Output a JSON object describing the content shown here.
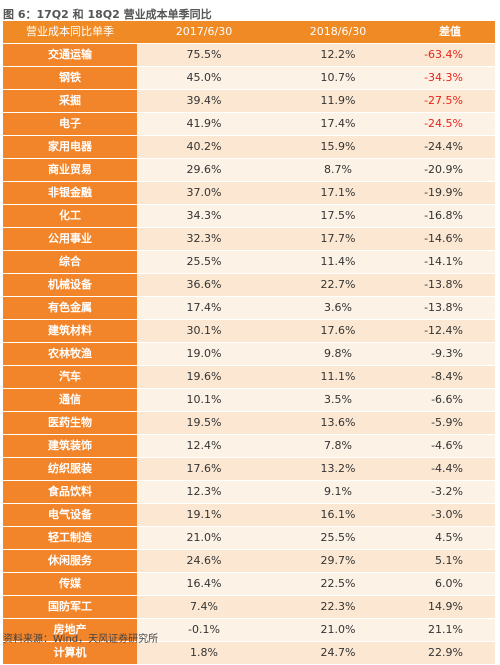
{
  "figure": {
    "title": "图 6：17Q2 和 18Q2 营业成本单季同比",
    "source": "资料来源：Wind，天风证券研究所"
  },
  "table": {
    "headers": [
      "营业成本同比单季",
      "2017/6/30",
      "2018/6/30",
      "差值"
    ],
    "rows": [
      {
        "industry": "交通运输",
        "v2017": "75.5%",
        "v2018": "12.2%",
        "diff": "-63.4%",
        "highlight": true
      },
      {
        "industry": "钢铁",
        "v2017": "45.0%",
        "v2018": "10.7%",
        "diff": "-34.3%",
        "highlight": true
      },
      {
        "industry": "采掘",
        "v2017": "39.4%",
        "v2018": "11.9%",
        "diff": "-27.5%",
        "highlight": true
      },
      {
        "industry": "电子",
        "v2017": "41.9%",
        "v2018": "17.4%",
        "diff": "-24.5%",
        "highlight": true
      },
      {
        "industry": "家用电器",
        "v2017": "40.2%",
        "v2018": "15.9%",
        "diff": "-24.4%",
        "highlight": false
      },
      {
        "industry": "商业贸易",
        "v2017": "29.6%",
        "v2018": "8.7%",
        "diff": "-20.9%",
        "highlight": false
      },
      {
        "industry": "非银金融",
        "v2017": "37.0%",
        "v2018": "17.1%",
        "diff": "-19.9%",
        "highlight": false
      },
      {
        "industry": "化工",
        "v2017": "34.3%",
        "v2018": "17.5%",
        "diff": "-16.8%",
        "highlight": false
      },
      {
        "industry": "公用事业",
        "v2017": "32.3%",
        "v2018": "17.7%",
        "diff": "-14.6%",
        "highlight": false
      },
      {
        "industry": "综合",
        "v2017": "25.5%",
        "v2018": "11.4%",
        "diff": "-14.1%",
        "highlight": false
      },
      {
        "industry": "机械设备",
        "v2017": "36.6%",
        "v2018": "22.7%",
        "diff": "-13.8%",
        "highlight": false
      },
      {
        "industry": "有色金属",
        "v2017": "17.4%",
        "v2018": "3.6%",
        "diff": "-13.8%",
        "highlight": false
      },
      {
        "industry": "建筑材料",
        "v2017": "30.1%",
        "v2018": "17.6%",
        "diff": "-12.4%",
        "highlight": false
      },
      {
        "industry": "农林牧渔",
        "v2017": "19.0%",
        "v2018": "9.8%",
        "diff": "-9.3%",
        "highlight": false
      },
      {
        "industry": "汽车",
        "v2017": "19.6%",
        "v2018": "11.1%",
        "diff": "-8.4%",
        "highlight": false
      },
      {
        "industry": "通信",
        "v2017": "10.1%",
        "v2018": "3.5%",
        "diff": "-6.6%",
        "highlight": false
      },
      {
        "industry": "医药生物",
        "v2017": "19.5%",
        "v2018": "13.6%",
        "diff": "-5.9%",
        "highlight": false
      },
      {
        "industry": "建筑装饰",
        "v2017": "12.4%",
        "v2018": "7.8%",
        "diff": "-4.6%",
        "highlight": false
      },
      {
        "industry": "纺织服装",
        "v2017": "17.6%",
        "v2018": "13.2%",
        "diff": "-4.4%",
        "highlight": false
      },
      {
        "industry": "食品饮料",
        "v2017": "12.3%",
        "v2018": "9.1%",
        "diff": "-3.2%",
        "highlight": false
      },
      {
        "industry": "电气设备",
        "v2017": "19.1%",
        "v2018": "16.1%",
        "diff": "-3.0%",
        "highlight": false
      },
      {
        "industry": "轻工制造",
        "v2017": "21.0%",
        "v2018": "25.5%",
        "diff": "4.5%",
        "highlight": false
      },
      {
        "industry": "休闲服务",
        "v2017": "24.6%",
        "v2018": "29.7%",
        "diff": "5.1%",
        "highlight": false
      },
      {
        "industry": "传媒",
        "v2017": "16.4%",
        "v2018": "22.5%",
        "diff": "6.0%",
        "highlight": false
      },
      {
        "industry": "国防军工",
        "v2017": "7.4%",
        "v2018": "22.3%",
        "diff": "14.9%",
        "highlight": false
      },
      {
        "industry": "房地产",
        "v2017": "-0.1%",
        "v2018": "21.0%",
        "diff": "21.1%",
        "highlight": false
      },
      {
        "industry": "计算机",
        "v2017": "1.8%",
        "v2018": "24.7%",
        "diff": "22.9%",
        "highlight": false
      }
    ]
  },
  "colors": {
    "header_bg": "#f08a24",
    "industry_bg": "#f2842a",
    "row_bg": "#fce8d2",
    "row_alt_bg": "#fdf2e6",
    "highlight_text": "#e8231c"
  }
}
